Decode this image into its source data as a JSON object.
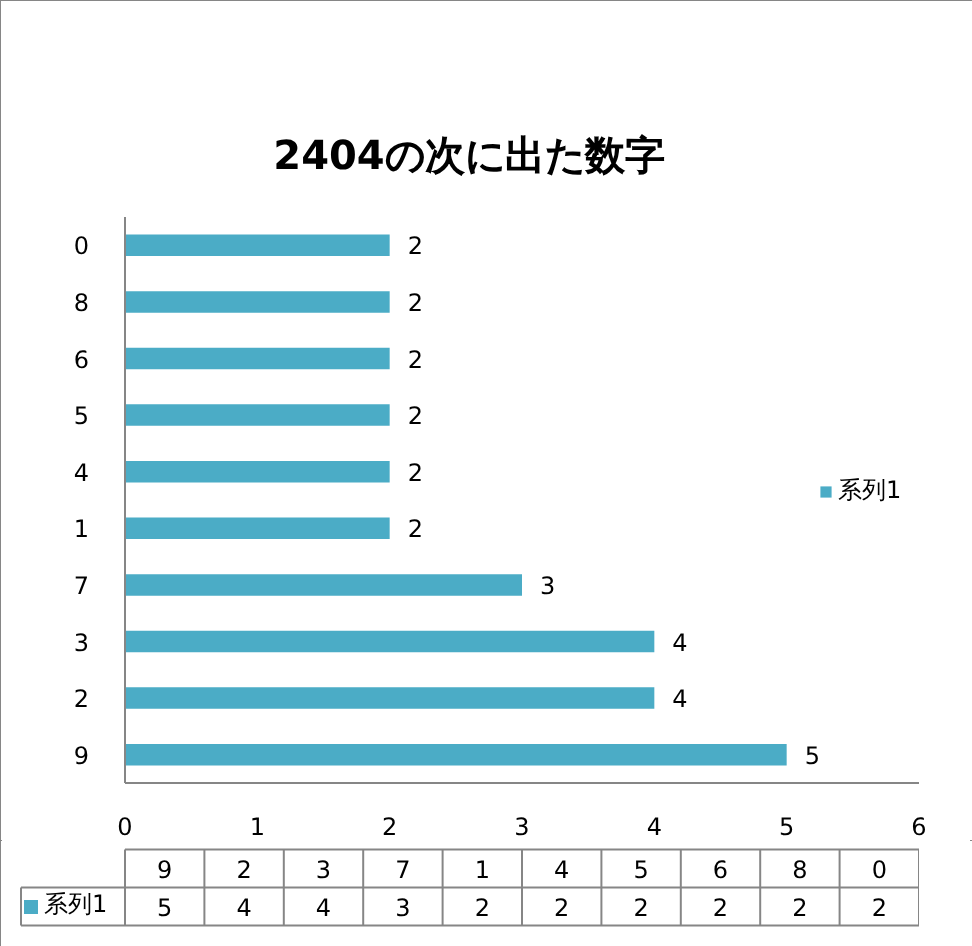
{
  "chart_data": {
    "type": "bar",
    "orientation": "horizontal",
    "title": "2404の次に出た数字",
    "categories": [
      "0",
      "8",
      "6",
      "5",
      "4",
      "1",
      "7",
      "3",
      "2",
      "9"
    ],
    "series": [
      {
        "name": "系列1",
        "color": "#4bacc6",
        "values": [
          2,
          2,
          2,
          2,
          2,
          2,
          3,
          4,
          4,
          5
        ]
      }
    ],
    "xlim": [
      0,
      6
    ],
    "xticks": [
      0,
      1,
      2,
      3,
      4,
      5,
      6
    ],
    "grid": false,
    "legend": "right",
    "data_labels": true
  }
}
